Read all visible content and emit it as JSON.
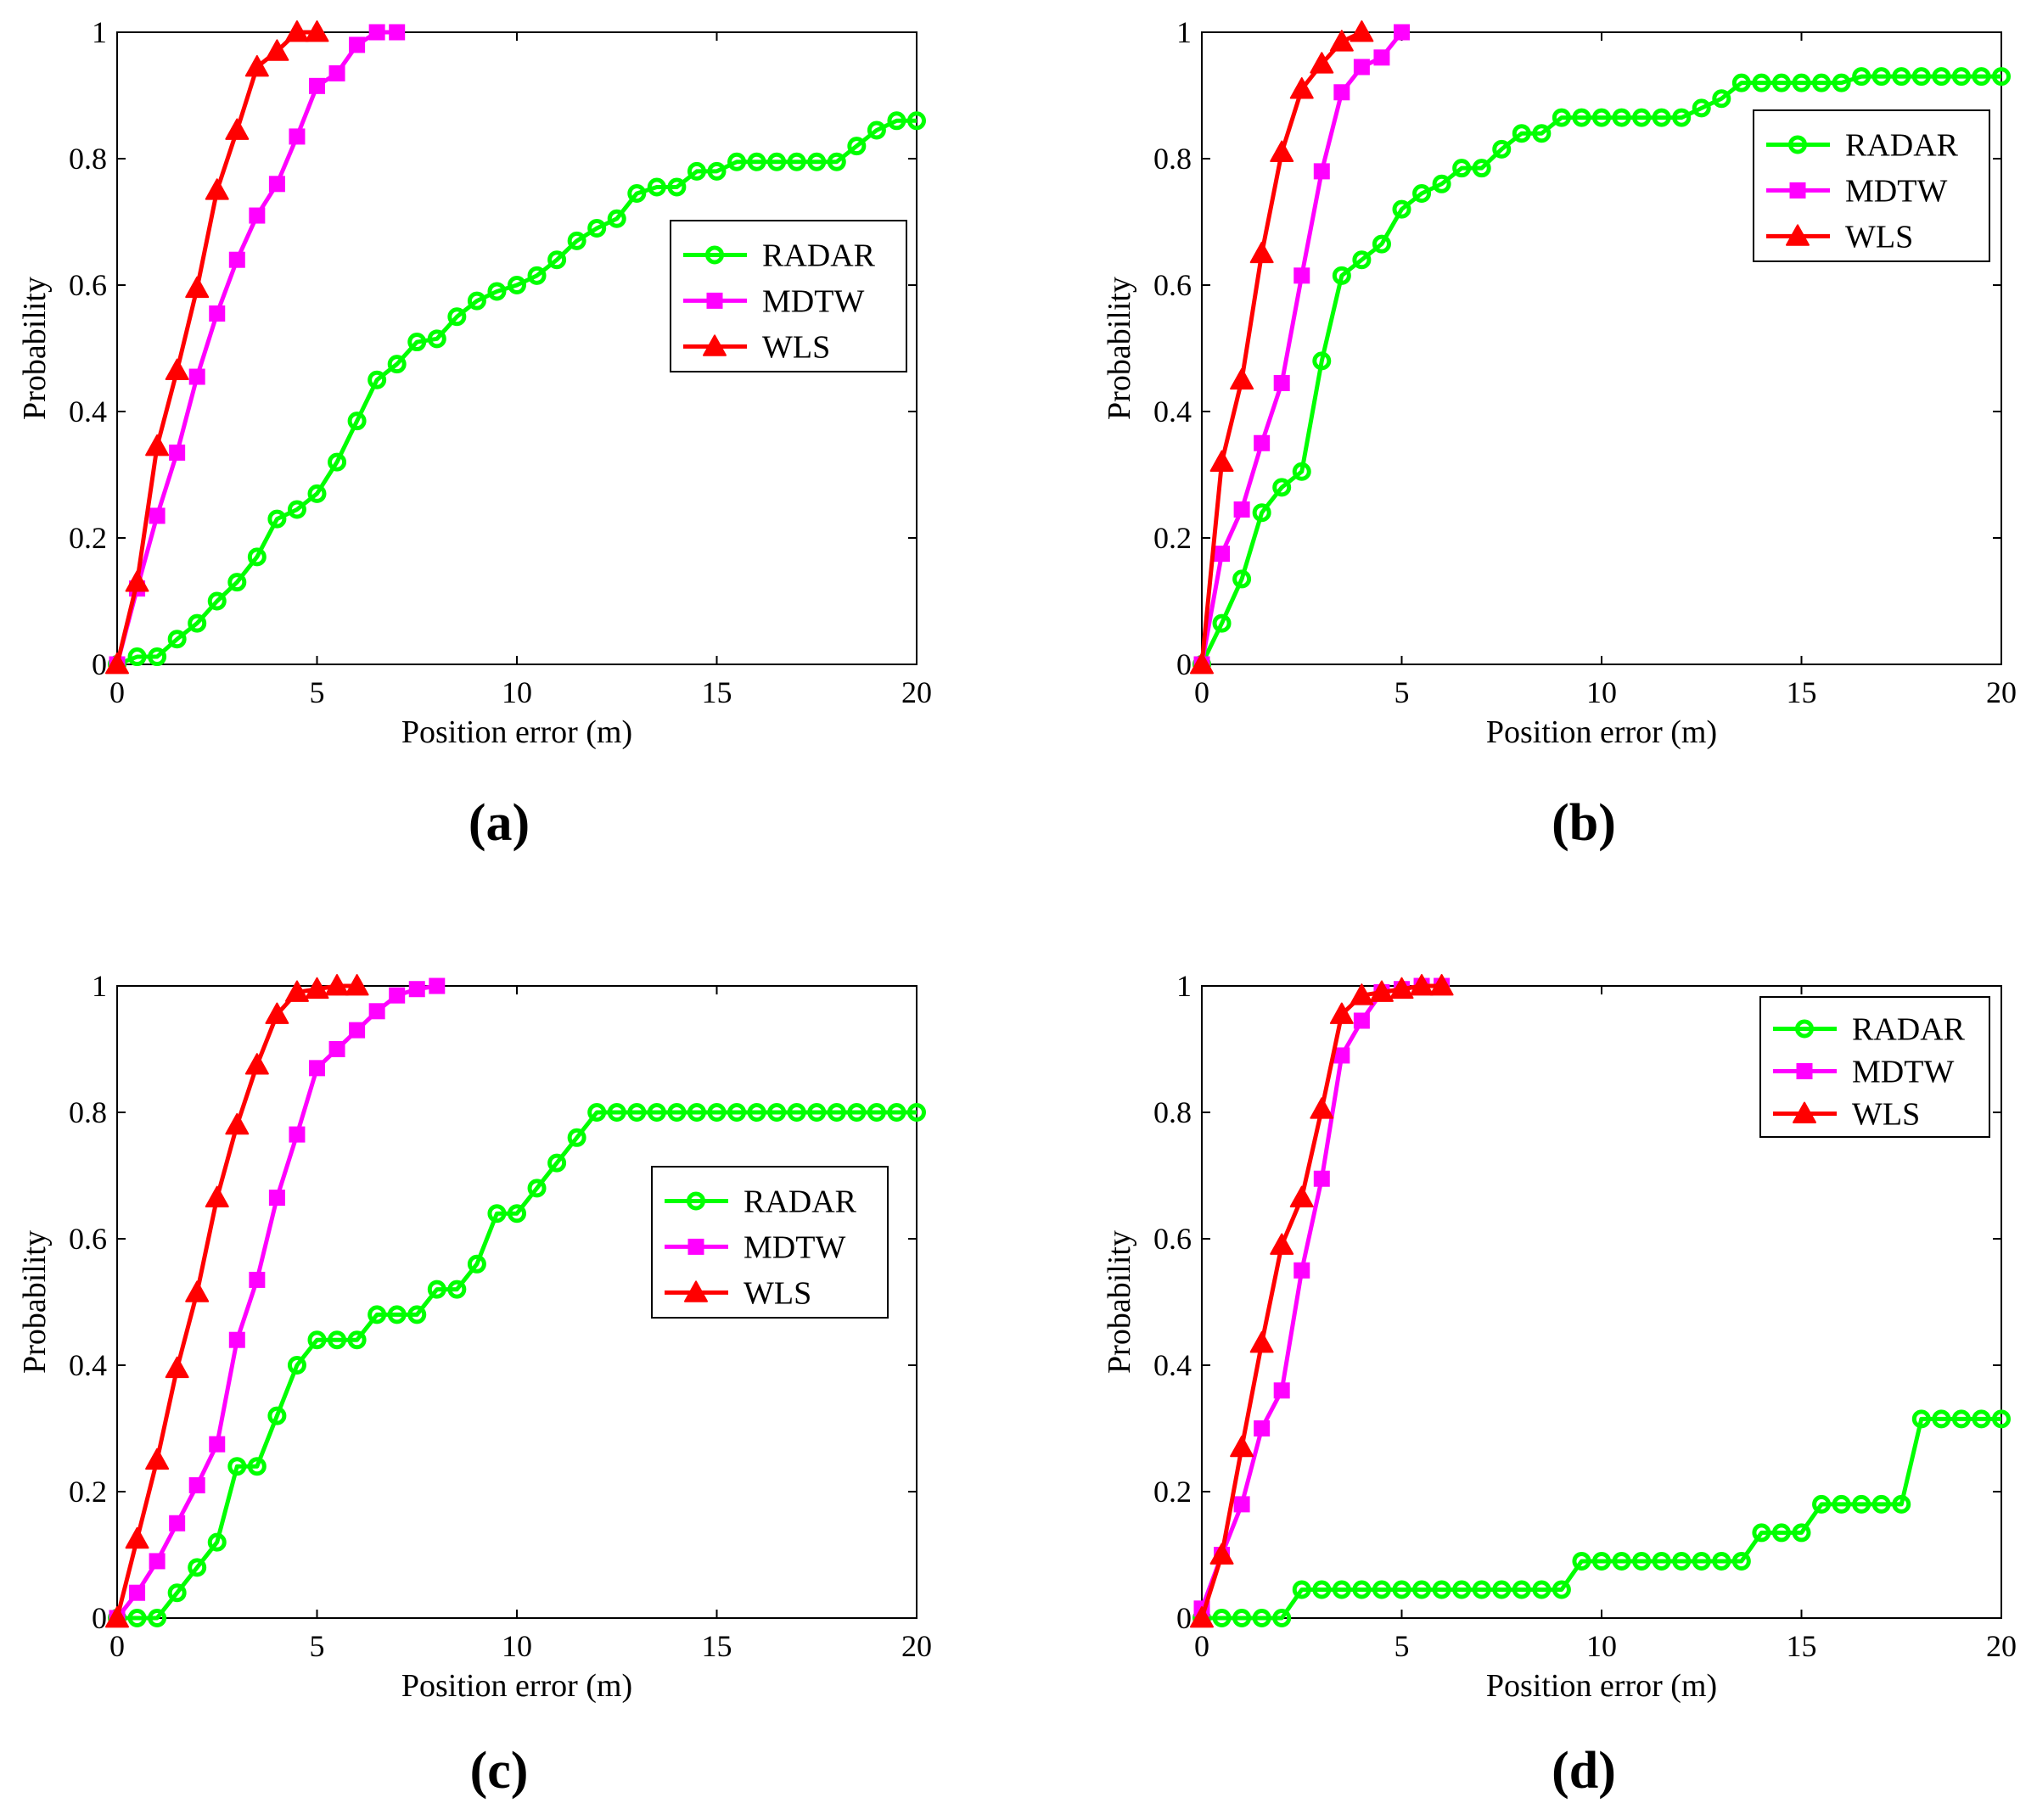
{
  "figure": {
    "colors": {
      "RADAR": "#00ff00",
      "MDTW": "#ff00ff",
      "WLS": "#ff0000"
    }
  },
  "chart_data": [
    {
      "panel": "(a)",
      "type": "line",
      "xlabel": "Position error (m)",
      "ylabel": "Probability",
      "xlim": [
        0,
        20
      ],
      "ylim": [
        0,
        1
      ],
      "xticks": [
        "0",
        "5",
        "10",
        "15",
        "20"
      ],
      "yticks": [
        "0",
        "0.2",
        "0.4",
        "0.6",
        "0.8",
        "1"
      ],
      "legend": {
        "position": "center-right",
        "entries": [
          "RADAR",
          "MDTW",
          "WLS"
        ]
      },
      "series": [
        {
          "name": "RADAR",
          "marker": "circle",
          "x": [
            0,
            0.5,
            1,
            1.5,
            2,
            2.5,
            3,
            3.5,
            4,
            4.5,
            5,
            5.5,
            6,
            6.5,
            7,
            7.5,
            8,
            8.5,
            9,
            9.5,
            10,
            10.5,
            11,
            11.5,
            12,
            12.5,
            13,
            13.5,
            14,
            14.5,
            15,
            15.5,
            16,
            16.5,
            17,
            17.5,
            18,
            18.5,
            19,
            19.5,
            20
          ],
          "y": [
            0,
            0.012,
            0.012,
            0.04,
            0.065,
            0.1,
            0.13,
            0.17,
            0.23,
            0.245,
            0.27,
            0.32,
            0.385,
            0.45,
            0.475,
            0.51,
            0.515,
            0.55,
            0.575,
            0.59,
            0.6,
            0.615,
            0.64,
            0.67,
            0.69,
            0.705,
            0.745,
            0.755,
            0.755,
            0.78,
            0.78,
            0.795,
            0.795,
            0.795,
            0.795,
            0.795,
            0.795,
            0.82,
            0.845,
            0.86,
            0.86
          ]
        },
        {
          "name": "MDTW",
          "marker": "square",
          "x": [
            0,
            0.5,
            1,
            1.5,
            2,
            2.5,
            3,
            3.5,
            4,
            4.5,
            5,
            5.5,
            6,
            6.5,
            7
          ],
          "y": [
            0,
            0.12,
            0.235,
            0.335,
            0.455,
            0.555,
            0.64,
            0.71,
            0.76,
            0.835,
            0.915,
            0.935,
            0.98,
            1,
            1
          ]
        },
        {
          "name": "WLS",
          "marker": "triangle",
          "x": [
            0,
            0.5,
            1,
            1.5,
            2,
            2.5,
            3,
            3.5,
            4,
            4.5,
            5
          ],
          "y": [
            0,
            0.13,
            0.345,
            0.465,
            0.595,
            0.75,
            0.845,
            0.945,
            0.97,
            1,
            1
          ]
        }
      ]
    },
    {
      "panel": "(b)",
      "type": "line",
      "xlabel": "Position error (m)",
      "ylabel": "Probability",
      "xlim": [
        0,
        20
      ],
      "ylim": [
        0,
        1
      ],
      "xticks": [
        "0",
        "5",
        "10",
        "15",
        "20"
      ],
      "yticks": [
        "0",
        "0.2",
        "0.4",
        "0.6",
        "0.8",
        "1"
      ],
      "legend": {
        "position": "top-right",
        "entries": [
          "RADAR",
          "MDTW",
          "WLS"
        ]
      },
      "series": [
        {
          "name": "RADAR",
          "marker": "circle",
          "x": [
            0,
            0.5,
            1,
            1.5,
            2,
            2.5,
            3,
            3.5,
            4,
            4.5,
            5,
            5.5,
            6,
            6.5,
            7,
            7.5,
            8,
            8.5,
            9,
            9.5,
            10,
            10.5,
            11,
            11.5,
            12,
            12.5,
            13,
            13.5,
            14,
            14.5,
            15,
            15.5,
            16,
            16.5,
            17,
            17.5,
            18,
            18.5,
            19,
            19.5,
            20
          ],
          "y": [
            0,
            0.065,
            0.135,
            0.24,
            0.28,
            0.305,
            0.48,
            0.615,
            0.64,
            0.665,
            0.72,
            0.745,
            0.76,
            0.785,
            0.785,
            0.815,
            0.84,
            0.84,
            0.865,
            0.865,
            0.865,
            0.865,
            0.865,
            0.865,
            0.865,
            0.88,
            0.895,
            0.92,
            0.92,
            0.92,
            0.92,
            0.92,
            0.92,
            0.93,
            0.93,
            0.93,
            0.93,
            0.93,
            0.93,
            0.93,
            0.93
          ]
        },
        {
          "name": "MDTW",
          "marker": "square",
          "x": [
            0,
            0.5,
            1,
            1.5,
            2,
            2.5,
            3,
            3.5,
            4,
            4.5,
            5
          ],
          "y": [
            0,
            0.175,
            0.245,
            0.35,
            0.445,
            0.615,
            0.78,
            0.905,
            0.945,
            0.96,
            1
          ]
        },
        {
          "name": "WLS",
          "marker": "triangle",
          "x": [
            0,
            0.5,
            1,
            1.5,
            2,
            2.5,
            3,
            3.5,
            4
          ],
          "y": [
            0,
            0.32,
            0.45,
            0.65,
            0.81,
            0.91,
            0.95,
            0.985,
            1
          ]
        }
      ]
    },
    {
      "panel": "(c)",
      "type": "line",
      "xlabel": "Position error (m)",
      "ylabel": "Probability",
      "xlim": [
        0,
        20
      ],
      "ylim": [
        0,
        1
      ],
      "xticks": [
        "0",
        "5",
        "10",
        "15",
        "20"
      ],
      "yticks": [
        "0",
        "0.2",
        "0.4",
        "0.6",
        "0.8",
        "1"
      ],
      "legend": {
        "position": "center-right",
        "entries": [
          "RADAR",
          "MDTW",
          "WLS"
        ]
      },
      "series": [
        {
          "name": "RADAR",
          "marker": "circle",
          "x": [
            0,
            0.5,
            1,
            1.5,
            2,
            2.5,
            3,
            3.5,
            4,
            4.5,
            5,
            5.5,
            6,
            6.5,
            7,
            7.5,
            8,
            8.5,
            9,
            9.5,
            10,
            10.5,
            11,
            11.5,
            12,
            12.5,
            13,
            13.5,
            14,
            14.5,
            15,
            15.5,
            16,
            16.5,
            17,
            17.5,
            18,
            18.5,
            19,
            19.5,
            20
          ],
          "y": [
            0,
            0,
            0,
            0.04,
            0.08,
            0.12,
            0.24,
            0.24,
            0.32,
            0.4,
            0.44,
            0.44,
            0.44,
            0.48,
            0.48,
            0.48,
            0.52,
            0.52,
            0.56,
            0.64,
            0.64,
            0.68,
            0.72,
            0.76,
            0.8,
            0.8,
            0.8,
            0.8,
            0.8,
            0.8,
            0.8,
            0.8,
            0.8,
            0.8,
            0.8,
            0.8,
            0.8,
            0.8,
            0.8,
            0.8,
            0.8
          ]
        },
        {
          "name": "MDTW",
          "marker": "square",
          "x": [
            0,
            0.5,
            1,
            1.5,
            2,
            2.5,
            3,
            3.5,
            4,
            4.5,
            5,
            5.5,
            6,
            6.5,
            7,
            7.5,
            8
          ],
          "y": [
            0,
            0.04,
            0.09,
            0.15,
            0.21,
            0.275,
            0.44,
            0.535,
            0.665,
            0.765,
            0.87,
            0.9,
            0.93,
            0.96,
            0.985,
            0.995,
            1
          ]
        },
        {
          "name": "WLS",
          "marker": "triangle",
          "x": [
            0,
            0.5,
            1,
            1.5,
            2,
            2.5,
            3,
            3.5,
            4,
            4.5,
            5,
            5.5,
            6
          ],
          "y": [
            0,
            0.125,
            0.25,
            0.395,
            0.515,
            0.665,
            0.78,
            0.875,
            0.955,
            0.99,
            0.995,
            1,
            1
          ]
        }
      ]
    },
    {
      "panel": "(d)",
      "type": "line",
      "xlabel": "Position error (m)",
      "ylabel": "Probability",
      "xlim": [
        0,
        20
      ],
      "ylim": [
        0,
        1
      ],
      "xticks": [
        "0",
        "5",
        "10",
        "15",
        "20"
      ],
      "yticks": [
        "0",
        "0.2",
        "0.4",
        "0.6",
        "0.8",
        "1"
      ],
      "legend": {
        "position": "top-right",
        "entries": [
          "RADAR",
          "MDTW",
          "WLS"
        ]
      },
      "series": [
        {
          "name": "RADAR",
          "marker": "circle",
          "x": [
            0,
            0.5,
            1,
            1.5,
            2,
            2.5,
            3,
            3.5,
            4,
            4.5,
            5,
            5.5,
            6,
            6.5,
            7,
            7.5,
            8,
            8.5,
            9,
            9.5,
            10,
            10.5,
            11,
            11.5,
            12,
            12.5,
            13,
            13.5,
            14,
            14.5,
            15,
            15.5,
            16,
            16.5,
            17,
            17.5,
            18,
            18.5,
            19,
            19.5,
            20
          ],
          "y": [
            0,
            0,
            0,
            0,
            0,
            0.045,
            0.045,
            0.045,
            0.045,
            0.045,
            0.045,
            0.045,
            0.045,
            0.045,
            0.045,
            0.045,
            0.045,
            0.045,
            0.045,
            0.09,
            0.09,
            0.09,
            0.09,
            0.09,
            0.09,
            0.09,
            0.09,
            0.09,
            0.135,
            0.135,
            0.135,
            0.18,
            0.18,
            0.18,
            0.18,
            0.18,
            0.315,
            0.315,
            0.315,
            0.315,
            0.315
          ]
        },
        {
          "name": "MDTW",
          "marker": "square",
          "x": [
            0,
            0.5,
            1,
            1.5,
            2,
            2.5,
            3,
            3.5,
            4,
            4.5,
            5,
            5.5,
            6
          ],
          "y": [
            0.015,
            0.1,
            0.18,
            0.3,
            0.36,
            0.55,
            0.695,
            0.89,
            0.945,
            0.99,
            0.995,
            1,
            1
          ]
        },
        {
          "name": "WLS",
          "marker": "triangle",
          "x": [
            0,
            0.5,
            1,
            1.5,
            2,
            2.5,
            3,
            3.5,
            4,
            4.5,
            5,
            5.5,
            6
          ],
          "y": [
            0,
            0.1,
            0.27,
            0.435,
            0.59,
            0.665,
            0.805,
            0.955,
            0.985,
            0.99,
            0.995,
            1,
            1
          ]
        }
      ]
    }
  ]
}
